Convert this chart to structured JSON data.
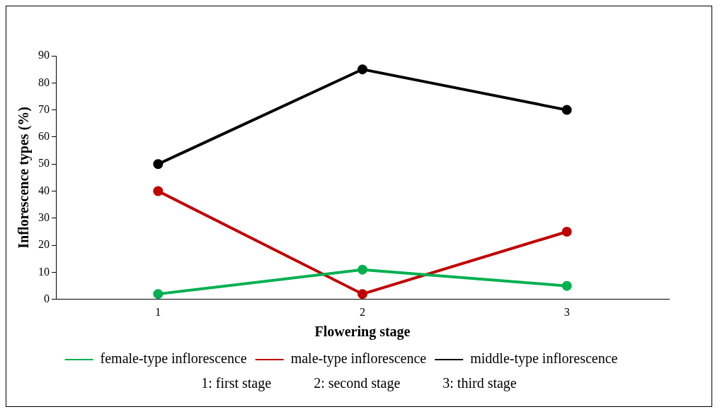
{
  "chart_data": {
    "type": "line",
    "xlabel": "Flowering stage",
    "ylabel": "Inflorescence types (%)",
    "categories": [
      "1",
      "2",
      "3"
    ],
    "series": [
      {
        "name": "female-type inflorescence",
        "color": "#00b050",
        "values": [
          2,
          11,
          5
        ]
      },
      {
        "name": "male-type inflorescence",
        "color": "#c00000",
        "values": [
          40,
          2,
          25
        ]
      },
      {
        "name": "middle-type inflorescence",
        "color": "#000000",
        "values": [
          50,
          85,
          70
        ]
      }
    ],
    "ylim": [
      0,
      90
    ],
    "yticks": [
      0,
      10,
      20,
      30,
      40,
      50,
      60,
      70,
      80,
      90
    ],
    "grid": false,
    "legend": "bottom",
    "marker": "circle",
    "line_style": "solid",
    "annotations": [
      "1: first stage",
      "2: second stage",
      "3: third stage"
    ]
  }
}
